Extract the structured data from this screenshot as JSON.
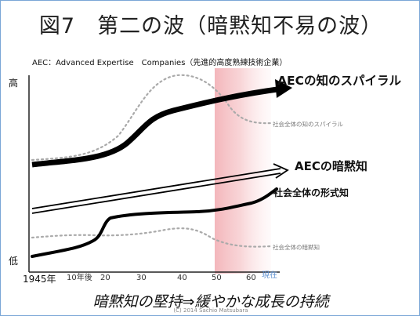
{
  "title": "図7　第二の波（暗黙知不易の波）",
  "subtitle": "AEC：Advanced Expertise　Companies（先進的高度熟練技術企業）",
  "axis": {
    "y_high": "高",
    "y_low": "低",
    "ticks": [
      "1945年",
      "10年後",
      "20",
      "30",
      "40",
      "50",
      "60",
      "現在"
    ]
  },
  "curves": {
    "aec_spiral": "AECの知のスパイラル",
    "aec_tacit": "AECの暗黙知",
    "society_explicit": "社会全体の形式知",
    "society_spiral": "社会全体の知のスパイラル",
    "society_tacit": "社会全体の暗黙知"
  },
  "caption": "暗黙知の堅持⇒緩やかな成長の持続",
  "copyright": "(C) 2014 Sachio Matsubara",
  "colors": {
    "highlight": "#f3b3b8",
    "frame": "#7aa6d6",
    "dotted": "#aaaaaa",
    "now_tick": "#5b8fd0"
  }
}
